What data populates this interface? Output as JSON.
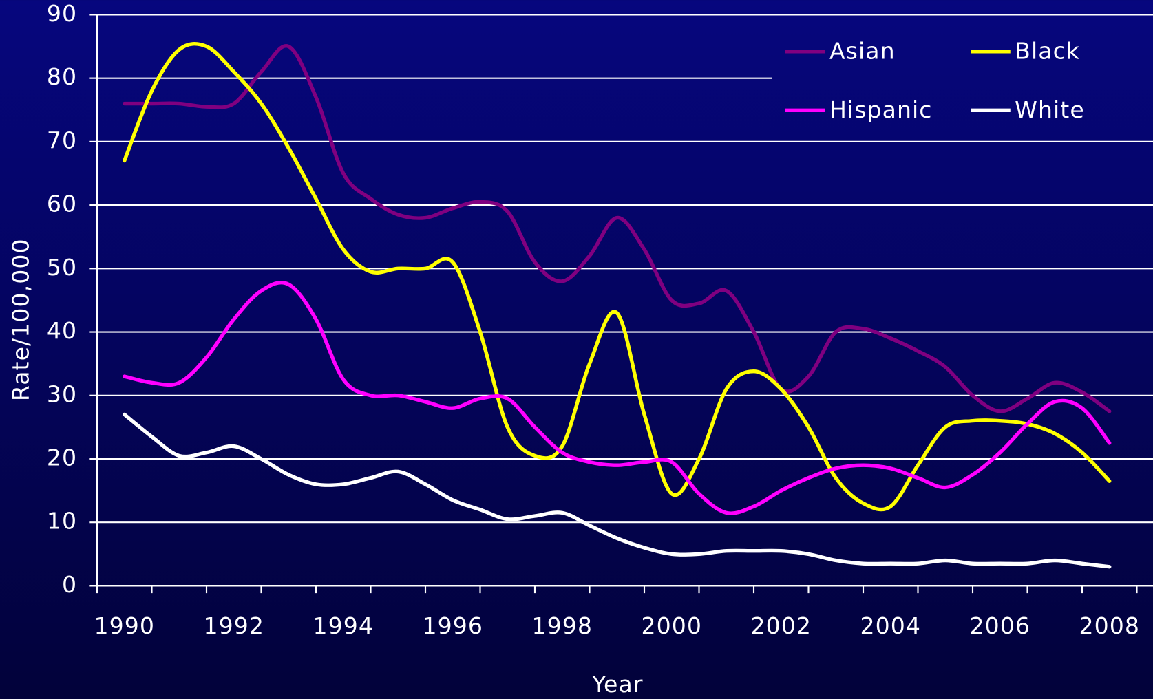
{
  "chart_data": {
    "type": "line",
    "x_label": "Year",
    "y_label": "Rate/100,000",
    "x": [
      1990,
      1990.5,
      1991,
      1991.5,
      1992,
      1992.5,
      1993,
      1993.5,
      1994,
      1994.5,
      1995,
      1995.5,
      1996,
      1996.5,
      1997,
      1997.5,
      1998,
      1998.5,
      1999,
      1999.5,
      2000,
      2000.5,
      2001,
      2001.5,
      2002,
      2002.5,
      2003,
      2003.5,
      2004,
      2004.5,
      2005,
      2005.5,
      2006,
      2006.5,
      2007,
      2007.5,
      2008
    ],
    "series": [
      {
        "name": "Asian",
        "color": "#800080",
        "values": [
          76,
          76,
          76,
          75.5,
          76,
          81,
          85,
          77,
          65,
          61,
          58.5,
          58,
          59.5,
          60.5,
          59,
          51,
          48,
          52,
          58,
          53,
          45,
          44.5,
          46.5,
          40,
          31,
          33,
          40,
          40.5,
          39,
          37,
          34.5,
          30,
          27.5,
          29.5,
          32,
          30.5,
          27.5
        ]
      },
      {
        "name": "Black",
        "color": "#ffff00",
        "values": [
          67,
          78,
          84.5,
          85,
          81,
          76,
          69,
          61,
          53,
          49.5,
          50,
          50,
          51,
          40,
          25,
          20.5,
          22,
          35,
          43,
          27,
          14.5,
          20,
          31,
          33.8,
          31,
          25,
          17,
          13,
          12.5,
          19,
          25,
          26,
          26,
          25.5,
          24,
          21,
          16.5
        ]
      },
      {
        "name": "Hispanic",
        "color": "#ff00ff",
        "values": [
          33,
          32,
          32,
          36,
          42,
          46.5,
          47.5,
          42,
          32.5,
          30,
          30,
          29,
          28,
          29.5,
          29.5,
          25,
          21,
          19.5,
          19,
          19.5,
          19.5,
          14.5,
          11.5,
          12.5,
          15,
          17,
          18.5,
          19,
          18.5,
          17,
          15.5,
          17.5,
          21,
          25.5,
          29,
          28,
          22.5
        ]
      },
      {
        "name": "White",
        "color": "#ffffff",
        "values": [
          27,
          23.5,
          20.5,
          21,
          22,
          20,
          17.5,
          16,
          16,
          17,
          18,
          16,
          13.5,
          12,
          10.5,
          11,
          11.5,
          9.5,
          7.5,
          6,
          5,
          5,
          5.5,
          5.5,
          5.5,
          5,
          4,
          3.5,
          3.5,
          3.5,
          4,
          3.5,
          3.5,
          3.5,
          4,
          3.5,
          3
        ]
      }
    ],
    "xlim": [
      1989.5,
      2008.5
    ],
    "xticks": [
      1990,
      1992,
      1994,
      1996,
      1998,
      2000,
      2002,
      2004,
      2006,
      2008
    ],
    "xminorticks": [
      1989.5,
      1990.5,
      1991.5,
      1992.5,
      1993.5,
      1994.5,
      1995.5,
      1996.5,
      1997.5,
      1998.5,
      1999.5,
      2000.5,
      2001.5,
      2002.5,
      2003.5,
      2004.5,
      2005.5,
      2006.5,
      2007.5,
      2008.5
    ],
    "ylim": [
      0,
      90
    ],
    "yticks": [
      0,
      10,
      20,
      30,
      40,
      50,
      60,
      70,
      80,
      90
    ],
    "grid": true,
    "legend": "upper right"
  }
}
